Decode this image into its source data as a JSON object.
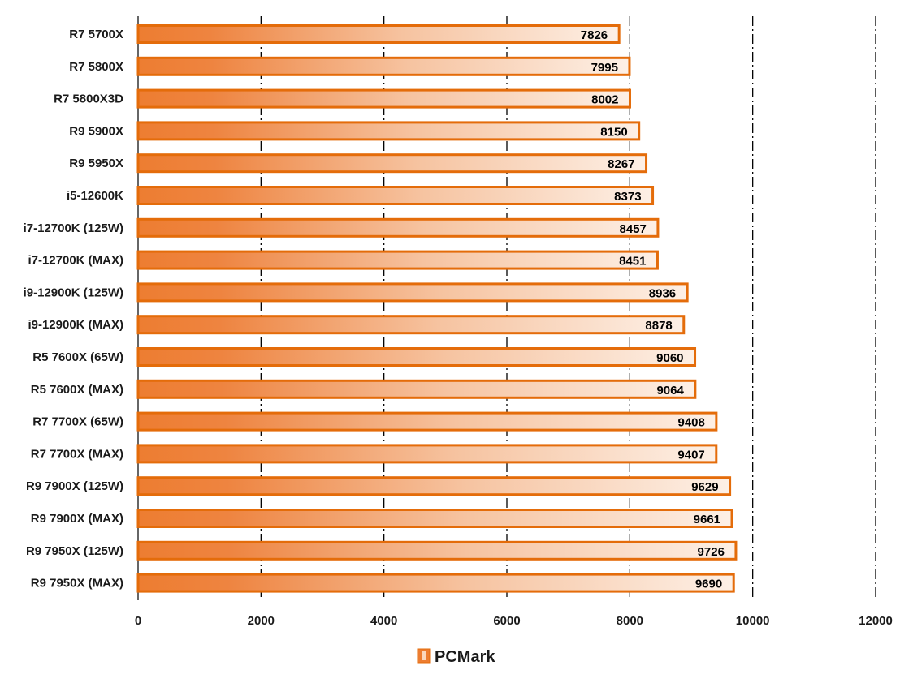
{
  "chart_data": {
    "type": "bar",
    "orientation": "horizontal",
    "categories": [
      "R7 5700X",
      "R7 5800X",
      "R7 5800X3D",
      "R9 5900X",
      "R9 5950X",
      "i5-12600K",
      "i7-12700K (125W)",
      "i7-12700K (MAX)",
      "i9-12900K (125W)",
      "i9-12900K (MAX)",
      "R5 7600X (65W)",
      "R5 7600X (MAX)",
      "R7 7700X (65W)",
      "R7 7700X (MAX)",
      "R9 7900X (125W)",
      "R9 7900X (MAX)",
      "R9 7950X (125W)",
      "R9 7950X (MAX)"
    ],
    "series": [
      {
        "name": "PCMark",
        "values": [
          7826,
          7995,
          8002,
          8150,
          8267,
          8373,
          8457,
          8451,
          8936,
          8878,
          9060,
          9064,
          9408,
          9407,
          9629,
          9661,
          9726,
          9690
        ]
      }
    ],
    "xlim": [
      0,
      12000
    ],
    "xticks": [
      0,
      2000,
      4000,
      6000,
      8000,
      10000,
      12000
    ],
    "grid": "vertical dash-dot",
    "legend_position": "bottom-center",
    "colors": {
      "bar_fill": "#ed7d31",
      "bar_fade": "#fbe5d6",
      "bar_edge": "#e46c0a",
      "grid": "#000000"
    }
  }
}
